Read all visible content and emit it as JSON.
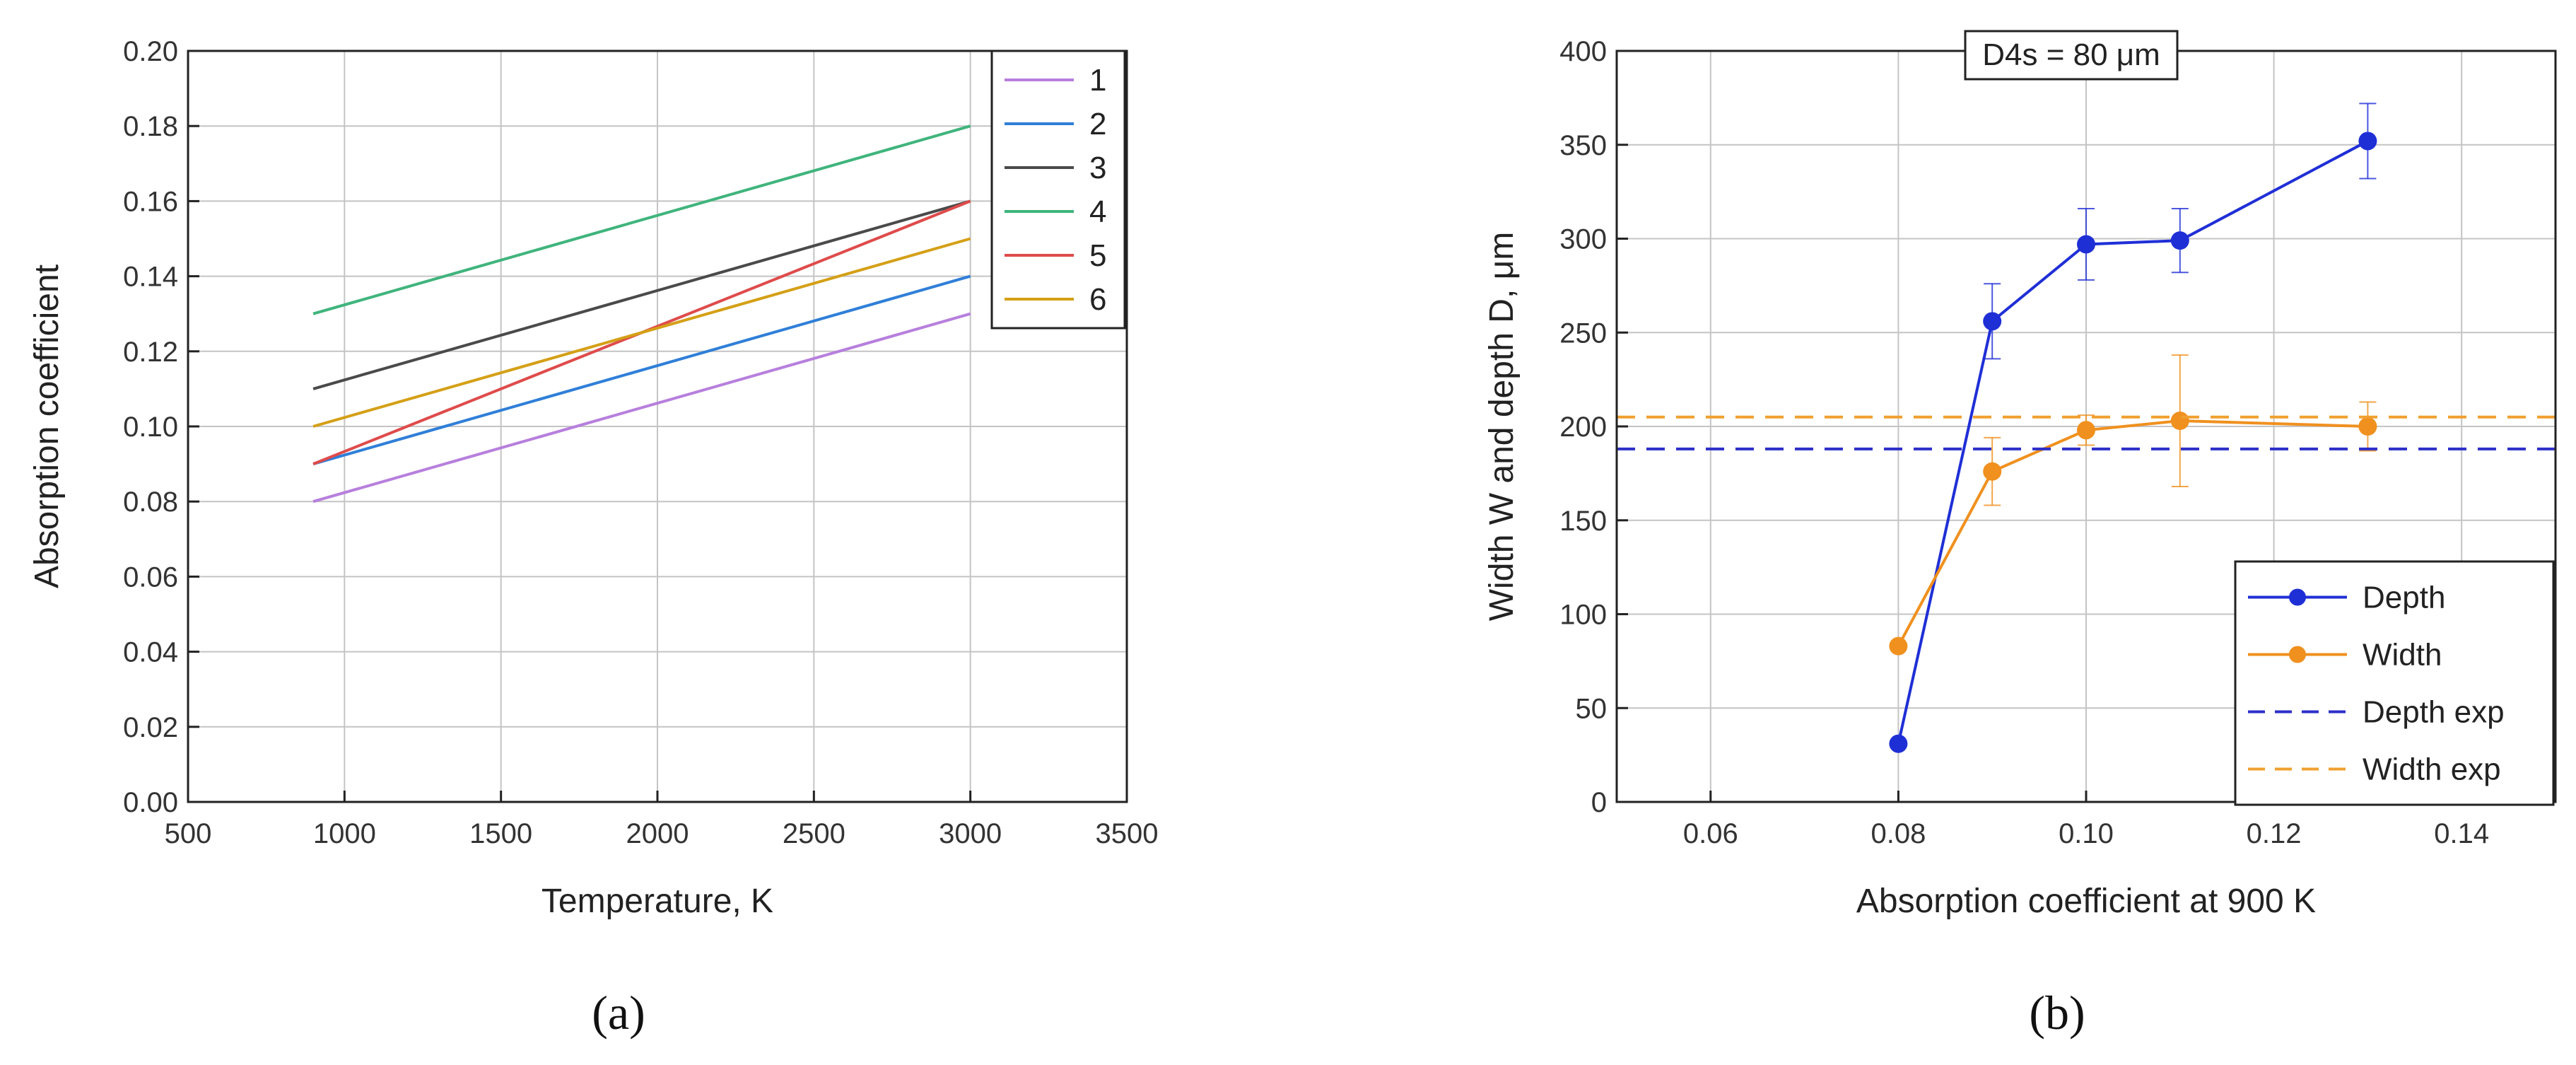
{
  "chart_data": [
    {
      "panel": "(a)",
      "type": "line",
      "xlabel": "Temperature, K",
      "ylabel": "Absorption coefficient",
      "xlim": [
        500,
        3500
      ],
      "ylim": [
        0.0,
        0.2
      ],
      "xticks": [
        500,
        1000,
        1500,
        2000,
        2500,
        3000,
        3500
      ],
      "yticks": [
        0.0,
        0.02,
        0.04,
        0.06,
        0.08,
        0.1,
        0.12,
        0.14,
        0.16,
        0.18,
        0.2
      ],
      "xtick_labels": [
        "500",
        "1000",
        "1500",
        "2000",
        "2500",
        "3000",
        "3500"
      ],
      "ytick_labels": [
        "0.00",
        "0.02",
        "0.04",
        "0.06",
        "0.08",
        "0.10",
        "0.12",
        "0.14",
        "0.16",
        "0.18",
        "0.20"
      ],
      "grid": true,
      "legend": "top-right",
      "series": [
        {
          "name": "1",
          "color": "#b77fdd",
          "x": [
            900,
            3000
          ],
          "y": [
            0.08,
            0.13
          ]
        },
        {
          "name": "2",
          "color": "#2f7fd8",
          "x": [
            900,
            3000
          ],
          "y": [
            0.09,
            0.14
          ]
        },
        {
          "name": "3",
          "color": "#4a4a4a",
          "x": [
            900,
            3000
          ],
          "y": [
            0.11,
            0.16
          ]
        },
        {
          "name": "4",
          "color": "#3fb47c",
          "x": [
            900,
            3000
          ],
          "y": [
            0.13,
            0.18
          ]
        },
        {
          "name": "5",
          "color": "#df4b4b",
          "x": [
            900,
            3000
          ],
          "y": [
            0.09,
            0.16
          ]
        },
        {
          "name": "6",
          "color": "#d4a017",
          "x": [
            900,
            3000
          ],
          "y": [
            0.1,
            0.15
          ]
        }
      ]
    },
    {
      "panel": "(b)",
      "type": "line",
      "title": "D4s = 80 μm",
      "xlabel": "Absorption coefficient at 900 K",
      "ylabel": "Width W and depth D, μm",
      "xlim": [
        0.05,
        0.15
      ],
      "ylim": [
        0,
        400
      ],
      "xticks": [
        0.06,
        0.08,
        0.1,
        0.12,
        0.14
      ],
      "yticks": [
        0,
        50,
        100,
        150,
        200,
        250,
        300,
        350,
        400
      ],
      "xtick_labels": [
        "0.06",
        "0.08",
        "0.10",
        "0.12",
        "0.14"
      ],
      "ytick_labels": [
        "0",
        "50",
        "100",
        "150",
        "200",
        "250",
        "300",
        "350",
        "400"
      ],
      "grid": true,
      "legend": "bottom-right",
      "series": [
        {
          "name": "Depth",
          "color": "#1f2fd6",
          "marker": "circle",
          "x": [
            0.08,
            0.09,
            0.1,
            0.11,
            0.13
          ],
          "y": [
            31,
            256,
            297,
            299,
            352
          ],
          "err": [
            0,
            20,
            19,
            17,
            20
          ]
        },
        {
          "name": "Width",
          "color": "#f0901e",
          "marker": "circle",
          "x": [
            0.08,
            0.09,
            0.1,
            0.11,
            0.13
          ],
          "y": [
            83,
            176,
            198,
            203,
            200
          ],
          "err": [
            0,
            18,
            8,
            35,
            13
          ]
        },
        {
          "name": "Depth exp",
          "color": "#2d2fc8",
          "dashed": true,
          "y_const": 188
        },
        {
          "name": "Width exp",
          "color": "#f0a030",
          "dashed": true,
          "y_const": 205
        }
      ]
    }
  ]
}
